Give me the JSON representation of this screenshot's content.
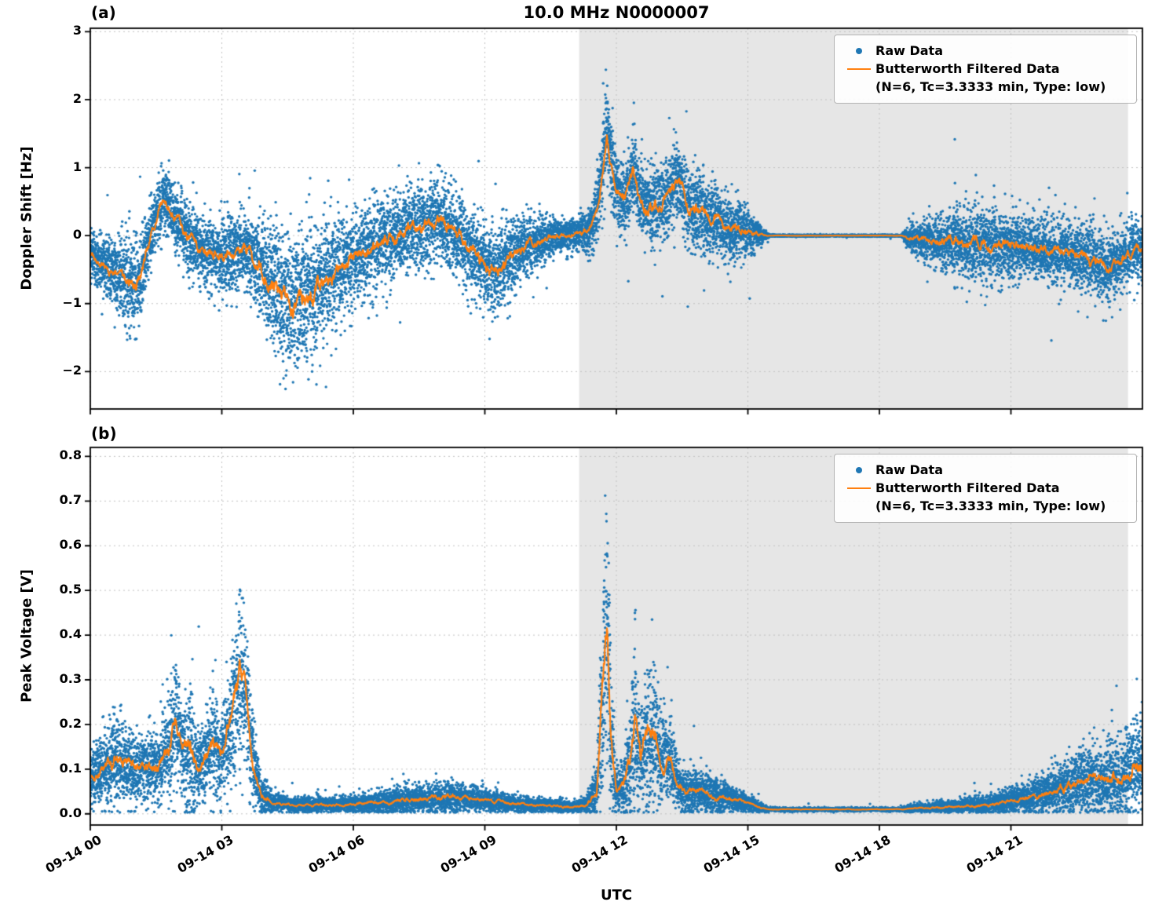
{
  "title": "10.0 MHz N0000007",
  "panel_a_label": "(a)",
  "panel_b_label": "(b)",
  "xlabel": "UTC",
  "legend": {
    "raw_label": "Raw Data",
    "filtered_label": "Butterworth Filtered Data",
    "filtered_detail": "(N=6, Tc=3.3333 min, Type: low)"
  },
  "colors": {
    "raw": "#1f77b4",
    "filtered": "#ff7f0e",
    "shade": "#e6e6e6",
    "grid": "#c0c0c0",
    "axis": "#000000",
    "legend_border": "#b3b3b3"
  },
  "x_axis": {
    "hours_range": [
      0,
      24
    ],
    "ticks": [
      {
        "h": 0,
        "label": "09-14 00"
      },
      {
        "h": 3,
        "label": "09-14 03"
      },
      {
        "h": 6,
        "label": "09-14 06"
      },
      {
        "h": 9,
        "label": "09-14 09"
      },
      {
        "h": 12,
        "label": "09-14 12"
      },
      {
        "h": 15,
        "label": "09-14 15"
      },
      {
        "h": 18,
        "label": "09-14 18"
      },
      {
        "h": 21,
        "label": "09-14 21"
      }
    ]
  },
  "shaded_region_hours": [
    11.15,
    23.67
  ],
  "chart_data": [
    {
      "panel": "a",
      "type": "scatter",
      "title": "10.0 MHz N0000007",
      "ylabel": "Doppler Shift [Hz]",
      "ylim": [
        -2.55,
        3.05
      ],
      "yticks": [
        {
          "v": 3,
          "label": "3"
        },
        {
          "v": 2,
          "label": "2"
        },
        {
          "v": 1,
          "label": "1"
        },
        {
          "v": 0,
          "label": "0"
        },
        {
          "v": -1,
          "label": "−1"
        },
        {
          "v": -2,
          "label": "−2"
        }
      ],
      "grid": true,
      "legend_position": "upper right",
      "series": [
        {
          "name": "Raw Data",
          "style": "scatter",
          "color": "#1f77b4"
        },
        {
          "name": "Butterworth Filtered Data (N=6, Tc=3.3333 min, Type: low)",
          "style": "line",
          "color": "#ff7f0e"
        }
      ],
      "profile_columns": [
        "utc_hour",
        "filtered_value_hz",
        "raw_scatter_sigma_hz"
      ],
      "profile": [
        [
          0.0,
          -0.25,
          0.18
        ],
        [
          0.3,
          -0.45,
          0.2
        ],
        [
          0.6,
          -0.55,
          0.25
        ],
        [
          0.9,
          -0.7,
          0.35
        ],
        [
          1.05,
          -0.75,
          0.35
        ],
        [
          1.2,
          -0.45,
          0.3
        ],
        [
          1.35,
          -0.05,
          0.25
        ],
        [
          1.55,
          0.35,
          0.22
        ],
        [
          1.7,
          0.55,
          0.2
        ],
        [
          1.9,
          0.3,
          0.22
        ],
        [
          2.1,
          0.1,
          0.25
        ],
        [
          2.4,
          -0.15,
          0.25
        ],
        [
          2.7,
          -0.3,
          0.25
        ],
        [
          3.0,
          -0.25,
          0.25
        ],
        [
          3.3,
          -0.32,
          0.28
        ],
        [
          3.5,
          -0.12,
          0.25
        ],
        [
          3.7,
          -0.35,
          0.3
        ],
        [
          4.0,
          -0.55,
          0.4
        ],
        [
          4.3,
          -0.8,
          0.45
        ],
        [
          4.6,
          -0.95,
          0.5
        ],
        [
          4.9,
          -0.85,
          0.5
        ],
        [
          5.2,
          -0.75,
          0.45
        ],
        [
          5.5,
          -0.6,
          0.42
        ],
        [
          5.8,
          -0.45,
          0.38
        ],
        [
          6.1,
          -0.3,
          0.33
        ],
        [
          6.4,
          -0.2,
          0.32
        ],
        [
          6.7,
          -0.1,
          0.32
        ],
        [
          7.0,
          0.0,
          0.32
        ],
        [
          7.3,
          0.1,
          0.3
        ],
        [
          7.6,
          0.15,
          0.3
        ],
        [
          7.9,
          0.25,
          0.3
        ],
        [
          8.2,
          0.1,
          0.3
        ],
        [
          8.5,
          -0.05,
          0.3
        ],
        [
          8.8,
          -0.3,
          0.3
        ],
        [
          9.1,
          -0.55,
          0.3
        ],
        [
          9.35,
          -0.45,
          0.3
        ],
        [
          9.6,
          -0.3,
          0.28
        ],
        [
          9.9,
          -0.18,
          0.24
        ],
        [
          10.2,
          -0.08,
          0.18
        ],
        [
          10.5,
          -0.03,
          0.14
        ],
        [
          10.8,
          0.0,
          0.12
        ],
        [
          11.1,
          0.02,
          0.12
        ],
        [
          11.35,
          0.08,
          0.16
        ],
        [
          11.55,
          0.35,
          0.25
        ],
        [
          11.68,
          0.95,
          0.32
        ],
        [
          11.78,
          1.6,
          0.35
        ],
        [
          11.88,
          1.05,
          0.3
        ],
        [
          12.0,
          0.62,
          0.3
        ],
        [
          12.2,
          0.5,
          0.28
        ],
        [
          12.38,
          1.0,
          0.3
        ],
        [
          12.52,
          0.55,
          0.28
        ],
        [
          12.7,
          0.4,
          0.28
        ],
        [
          12.9,
          0.45,
          0.3
        ],
        [
          13.1,
          0.5,
          0.3
        ],
        [
          13.38,
          0.8,
          0.35
        ],
        [
          13.6,
          0.5,
          0.3
        ],
        [
          13.8,
          0.35,
          0.3
        ],
        [
          14.0,
          0.3,
          0.28
        ],
        [
          14.3,
          0.2,
          0.25
        ],
        [
          14.6,
          0.12,
          0.22
        ],
        [
          14.9,
          0.07,
          0.2
        ],
        [
          15.15,
          0.02,
          0.13
        ],
        [
          15.35,
          0.0,
          0.05
        ],
        [
          15.5,
          0.0,
          0.006
        ],
        [
          18.5,
          0.0,
          0.006
        ],
        [
          18.7,
          -0.03,
          0.1
        ],
        [
          19.0,
          -0.06,
          0.14
        ],
        [
          19.3,
          -0.08,
          0.17
        ],
        [
          19.6,
          -0.1,
          0.22
        ],
        [
          19.9,
          -0.1,
          0.26
        ],
        [
          20.2,
          -0.12,
          0.28
        ],
        [
          20.5,
          -0.12,
          0.25
        ],
        [
          20.8,
          -0.15,
          0.23
        ],
        [
          21.1,
          -0.18,
          0.22
        ],
        [
          21.4,
          -0.15,
          0.22
        ],
        [
          21.7,
          -0.2,
          0.22
        ],
        [
          22.0,
          -0.22,
          0.22
        ],
        [
          22.3,
          -0.25,
          0.23
        ],
        [
          22.6,
          -0.3,
          0.25
        ],
        [
          22.9,
          -0.4,
          0.25
        ],
        [
          23.2,
          -0.5,
          0.25
        ],
        [
          23.45,
          -0.42,
          0.22
        ],
        [
          23.65,
          -0.28,
          0.2
        ],
        [
          23.85,
          -0.2,
          0.2
        ],
        [
          24.0,
          -0.2,
          0.2
        ]
      ]
    },
    {
      "panel": "b",
      "type": "scatter",
      "ylabel": "Peak Voltage [V]",
      "ylim": [
        -0.025,
        0.82
      ],
      "yticks": [
        {
          "v": 0.8,
          "label": "0.8"
        },
        {
          "v": 0.7,
          "label": "0.7"
        },
        {
          "v": 0.6,
          "label": "0.6"
        },
        {
          "v": 0.5,
          "label": "0.5"
        },
        {
          "v": 0.4,
          "label": "0.4"
        },
        {
          "v": 0.3,
          "label": "0.3"
        },
        {
          "v": 0.2,
          "label": "0.2"
        },
        {
          "v": 0.1,
          "label": "0.1"
        },
        {
          "v": 0.0,
          "label": "0.0"
        }
      ],
      "grid": true,
      "legend_position": "upper right",
      "series": [
        {
          "name": "Raw Data",
          "style": "scatter",
          "color": "#1f77b4"
        },
        {
          "name": "Butterworth Filtered Data (N=6, Tc=3.3333 min, Type: low)",
          "style": "line",
          "color": "#ff7f0e"
        }
      ],
      "profile_columns": [
        "utc_hour",
        "filtered_value_v",
        "raw_scatter_sigma_v"
      ],
      "profile": [
        [
          0.0,
          0.08,
          0.03
        ],
        [
          0.3,
          0.1,
          0.04
        ],
        [
          0.55,
          0.12,
          0.05
        ],
        [
          0.8,
          0.11,
          0.045
        ],
        [
          1.05,
          0.1,
          0.04
        ],
        [
          1.3,
          0.11,
          0.04
        ],
        [
          1.55,
          0.1,
          0.04
        ],
        [
          1.8,
          0.15,
          0.05
        ],
        [
          1.95,
          0.22,
          0.06
        ],
        [
          2.1,
          0.13,
          0.05
        ],
        [
          2.3,
          0.15,
          0.09
        ],
        [
          2.45,
          0.1,
          0.05
        ],
        [
          2.6,
          0.12,
          0.05
        ],
        [
          2.8,
          0.16,
          0.06
        ],
        [
          3.0,
          0.13,
          0.05
        ],
        [
          3.2,
          0.2,
          0.07
        ],
        [
          3.42,
          0.31,
          0.1
        ],
        [
          3.55,
          0.27,
          0.08
        ],
        [
          3.7,
          0.12,
          0.05
        ],
        [
          3.9,
          0.04,
          0.02
        ],
        [
          4.2,
          0.025,
          0.01
        ],
        [
          4.6,
          0.02,
          0.008
        ],
        [
          5.0,
          0.02,
          0.008
        ],
        [
          5.5,
          0.02,
          0.008
        ],
        [
          6.0,
          0.022,
          0.01
        ],
        [
          6.5,
          0.025,
          0.012
        ],
        [
          7.0,
          0.03,
          0.014
        ],
        [
          7.5,
          0.035,
          0.015
        ],
        [
          8.0,
          0.035,
          0.016
        ],
        [
          8.3,
          0.04,
          0.018
        ],
        [
          8.6,
          0.035,
          0.015
        ],
        [
          9.0,
          0.03,
          0.012
        ],
        [
          9.5,
          0.025,
          0.01
        ],
        [
          10.0,
          0.02,
          0.008
        ],
        [
          10.5,
          0.018,
          0.007
        ],
        [
          11.0,
          0.015,
          0.006
        ],
        [
          11.3,
          0.02,
          0.009
        ],
        [
          11.55,
          0.05,
          0.03
        ],
        [
          11.7,
          0.3,
          0.12
        ],
        [
          11.78,
          0.44,
          0.14
        ],
        [
          11.88,
          0.16,
          0.08
        ],
        [
          12.0,
          0.05,
          0.025
        ],
        [
          12.15,
          0.06,
          0.03
        ],
        [
          12.3,
          0.12,
          0.06
        ],
        [
          12.42,
          0.21,
          0.1
        ],
        [
          12.55,
          0.12,
          0.06
        ],
        [
          12.7,
          0.17,
          0.08
        ],
        [
          12.85,
          0.19,
          0.08
        ],
        [
          13.0,
          0.12,
          0.05
        ],
        [
          13.2,
          0.13,
          0.05
        ],
        [
          13.4,
          0.07,
          0.03
        ],
        [
          13.6,
          0.05,
          0.025
        ],
        [
          13.9,
          0.05,
          0.024
        ],
        [
          14.2,
          0.04,
          0.02
        ],
        [
          14.5,
          0.035,
          0.015
        ],
        [
          14.8,
          0.03,
          0.012
        ],
        [
          15.1,
          0.02,
          0.008
        ],
        [
          15.35,
          0.012,
          0.004
        ],
        [
          15.5,
          0.01,
          0.002
        ],
        [
          18.5,
          0.01,
          0.002
        ],
        [
          18.7,
          0.012,
          0.004
        ],
        [
          19.0,
          0.013,
          0.005
        ],
        [
          19.5,
          0.015,
          0.006
        ],
        [
          20.0,
          0.018,
          0.008
        ],
        [
          20.5,
          0.02,
          0.01
        ],
        [
          21.0,
          0.03,
          0.014
        ],
        [
          21.3,
          0.035,
          0.017
        ],
        [
          21.6,
          0.04,
          0.02
        ],
        [
          21.9,
          0.05,
          0.024
        ],
        [
          22.2,
          0.06,
          0.03
        ],
        [
          22.5,
          0.07,
          0.034
        ],
        [
          22.8,
          0.08,
          0.04
        ],
        [
          23.1,
          0.07,
          0.034
        ],
        [
          23.3,
          0.09,
          0.045
        ],
        [
          23.5,
          0.08,
          0.04
        ],
        [
          23.7,
          0.1,
          0.05
        ],
        [
          23.85,
          0.12,
          0.06
        ],
        [
          24.0,
          0.1,
          0.05
        ]
      ]
    }
  ]
}
